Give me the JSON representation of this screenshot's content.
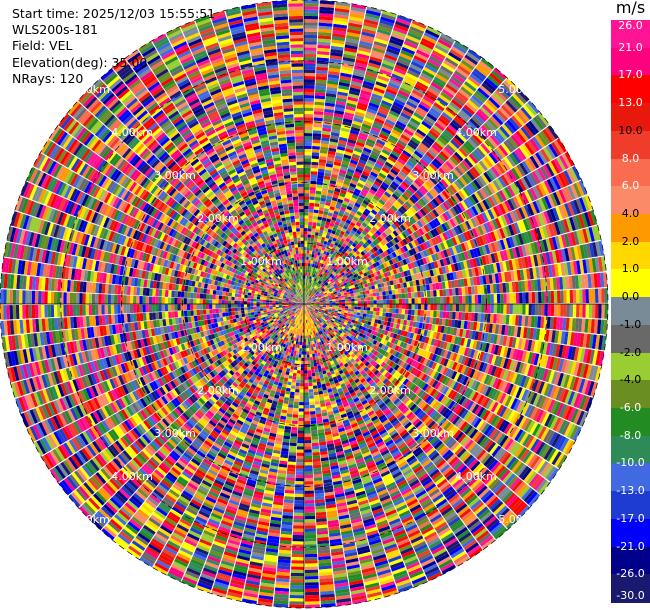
{
  "info": {
    "start_time": "Start time: 2025/12/03 15:55:51",
    "instrument": "WLS200s-181",
    "field": "Field: VEL",
    "elevation": "Elevation(deg): 35.00",
    "nrays": "NRays: 120"
  },
  "colorbar": {
    "unit": "m/s",
    "ticks": [
      "26.0",
      "21.0",
      "17.0",
      "13.0",
      "10.0",
      "8.0",
      "6.0",
      "4.0",
      "2.0",
      "1.0",
      "0.0",
      "-1.0",
      "-2.0",
      "-4.0",
      "-6.0",
      "-8.0",
      "-10.0",
      "-13.0",
      "-17.0",
      "-21.0",
      "-26.0",
      "-30.0"
    ],
    "colors": [
      "#ff1493",
      "#ff007f",
      "#ff0000",
      "#e8180c",
      "#f03c2b",
      "#fa6c4f",
      "#fb8a69",
      "#ff9900",
      "#ffd800",
      "#ffff00",
      "#7a8b98",
      "#696969",
      "#9acd32",
      "#6b8e23",
      "#228b22",
      "#2e8b57",
      "#4169e1",
      "#1e3cd2",
      "#0000ff",
      "#00008b",
      "#191970"
    ]
  },
  "chart_data": {
    "type": "heatmap",
    "projection": "polar (PPI scan)",
    "field": "VEL",
    "rays": 120,
    "elevation_deg": 35.0,
    "range_ring_labels": [
      "1.00km",
      "2.00km",
      "3.00km",
      "4.00km",
      "5.00km"
    ],
    "range_rings_km": [
      1,
      2,
      3,
      4,
      5
    ],
    "max_range_km": 5.0,
    "value_bounds": [
      -30,
      26
    ],
    "dominant_near_range": {
      "south_sector": "4.0 to 6.0",
      "north_sector": "-4.0 to -6.0"
    }
  }
}
